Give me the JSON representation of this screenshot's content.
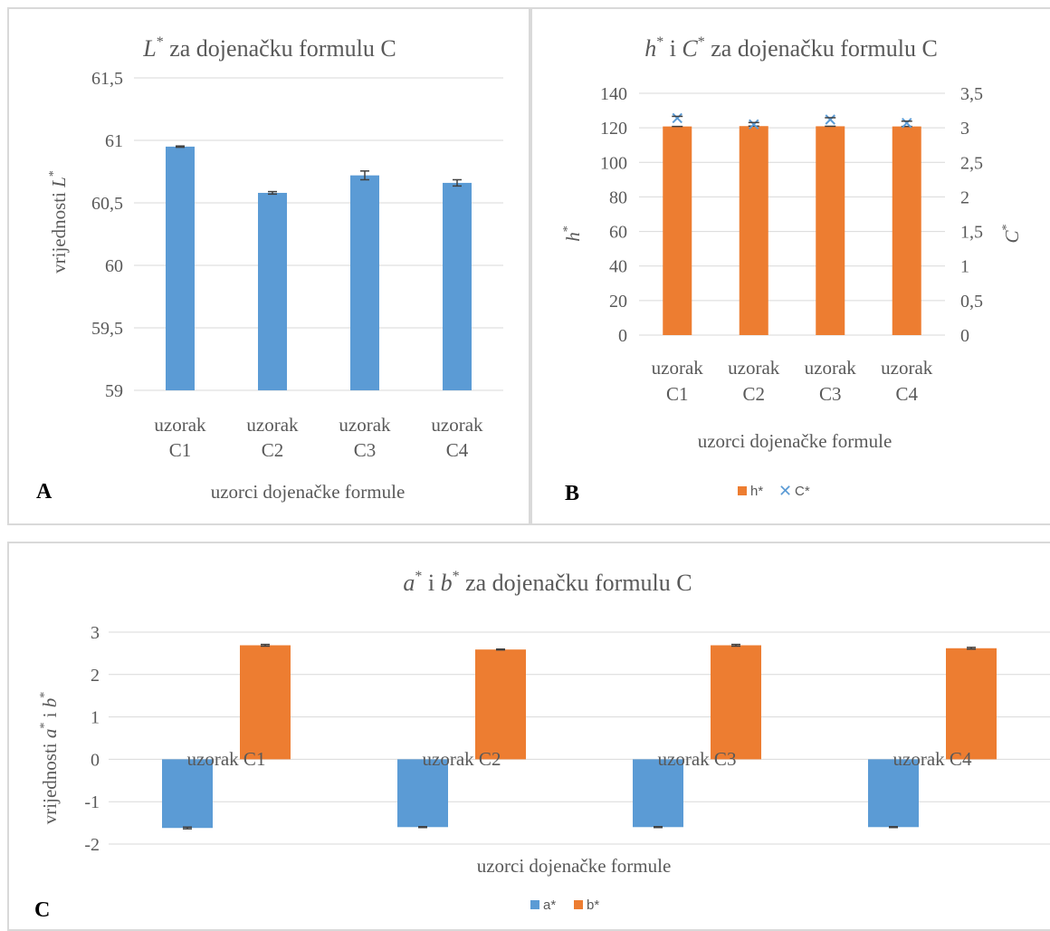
{
  "panels": {
    "a_letter": "A",
    "b_letter": "B",
    "c_letter": "C"
  },
  "colors": {
    "blue": "#5b9bd5",
    "orange": "#ed7d31",
    "grid": "#d9d9d9",
    "text": "#595959",
    "error": "#404040"
  },
  "chart_data": [
    {
      "type": "bar",
      "title_main": "L",
      "title_sup": "*",
      "title_rest": " za dojenačku formulu C",
      "categories": [
        [
          "uzorak",
          "C1"
        ],
        [
          "uzorak",
          "C2"
        ],
        [
          "uzorak",
          "C3"
        ],
        [
          "uzorak",
          "C4"
        ]
      ],
      "values": [
        60.95,
        60.58,
        60.72,
        60.66
      ],
      "errors": [
        0.005,
        0.01,
        0.035,
        0.025
      ],
      "ylim": [
        59,
        61.5
      ],
      "yticks": [
        "59",
        "59,5",
        "60",
        "60,5",
        "61",
        "61,5"
      ],
      "ylabel_main": "vrijednosti ",
      "ylabel_var": "L",
      "ylabel_sup": "*",
      "xlabel": "uzorci dojenačke formule",
      "grid": true
    },
    {
      "type": "bar",
      "title_v1": "h",
      "title_s1": "*",
      "title_mid": " i ",
      "title_v2": "C",
      "title_s2": "*",
      "title_rest": " za dojenačku formulu C",
      "categories": [
        [
          "uzorak",
          "C1"
        ],
        [
          "uzorak",
          "C2"
        ],
        [
          "uzorak",
          "C3"
        ],
        [
          "uzorak",
          "C4"
        ]
      ],
      "series": [
        {
          "name": "h*",
          "values": [
            120.8,
            121.0,
            120.9,
            120.8
          ],
          "axis": "left"
        },
        {
          "name": "C*",
          "values": [
            3.14,
            3.05,
            3.12,
            3.07
          ],
          "axis": "right",
          "marker": "x"
        }
      ],
      "ylim_left": [
        0,
        140
      ],
      "yticks_left": [
        "0",
        "20",
        "40",
        "60",
        "80",
        "100",
        "120",
        "140"
      ],
      "ylim_right": [
        0,
        3.5
      ],
      "yticks_right": [
        "0",
        "0,5",
        "1",
        "1,5",
        "2",
        "2,5",
        "3",
        "3,5"
      ],
      "ylabel_left_var": "h",
      "ylabel_left_sup": "*",
      "ylabel_right_var": "C",
      "ylabel_right_sup": "*",
      "xlabel": "uzorci dojenačke formule",
      "legend": "bottom",
      "grid": true
    },
    {
      "type": "bar",
      "title_v1": "a",
      "title_s1": "*",
      "title_mid": " i ",
      "title_v2": "b",
      "title_s2": "*",
      "title_rest": " za dojenačku formulu C",
      "categories": [
        "uzorak C1",
        "uzorak C2",
        "uzorak C3",
        "uzorak C4"
      ],
      "series": [
        {
          "name": "a*",
          "values": [
            -1.62,
            -1.6,
            -1.6,
            -1.6
          ],
          "errors": [
            0.02,
            0.01,
            0.01,
            0.01
          ]
        },
        {
          "name": "b*",
          "values": [
            2.69,
            2.59,
            2.69,
            2.62
          ],
          "errors": [
            0.02,
            0.01,
            0.02,
            0.02
          ]
        }
      ],
      "ylim": [
        -2,
        3
      ],
      "yticks": [
        "-2",
        "-1",
        "0",
        "1",
        "2",
        "3"
      ],
      "ylabel_main": "vrijednosti ",
      "ylabel_v1": "a",
      "ylabel_s1": "*",
      "ylabel_mid": " i ",
      "ylabel_v2": "b",
      "ylabel_s2": "*",
      "xlabel": "uzorci dojenačke formule",
      "legend": "bottom",
      "grid": true
    }
  ]
}
